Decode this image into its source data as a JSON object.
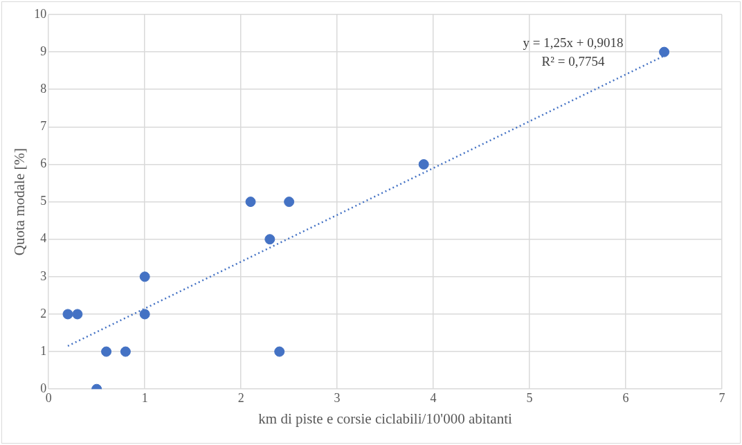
{
  "chart_data": {
    "type": "scatter",
    "xlabel": "km di piste e corsie ciclabili/10'000 abitanti",
    "ylabel": "Quota modale [%]",
    "series": [
      {
        "type": "scatter",
        "color": "#4472c4",
        "x": [
          0.2,
          0.3,
          0.5,
          0.6,
          0.8,
          1,
          1,
          2.1,
          2.3,
          2.4,
          2.5,
          3.9,
          6.4
        ],
        "values": [
          2,
          2,
          0,
          1,
          1,
          2,
          3,
          5,
          4,
          1,
          5,
          6,
          9
        ],
        "marker": "circle"
      },
      {
        "type": "line",
        "color": "#4472c4",
        "x": [
          0.2,
          6.4
        ],
        "values": [
          1.15,
          8.9
        ],
        "line_style": "dotted",
        "marker": "none"
      }
    ],
    "annotations": [
      "y = 1,25x + 0,9018",
      "R² = 0,7754"
    ],
    "xlim": [
      0,
      7
    ],
    "xticks": [
      0,
      1,
      2,
      3,
      4,
      5,
      6,
      7
    ],
    "ylim": [
      0,
      10
    ],
    "yticks": [
      0,
      1,
      2,
      3,
      4,
      5,
      6,
      7,
      8,
      9,
      10
    ],
    "grid": true,
    "legend": false
  }
}
